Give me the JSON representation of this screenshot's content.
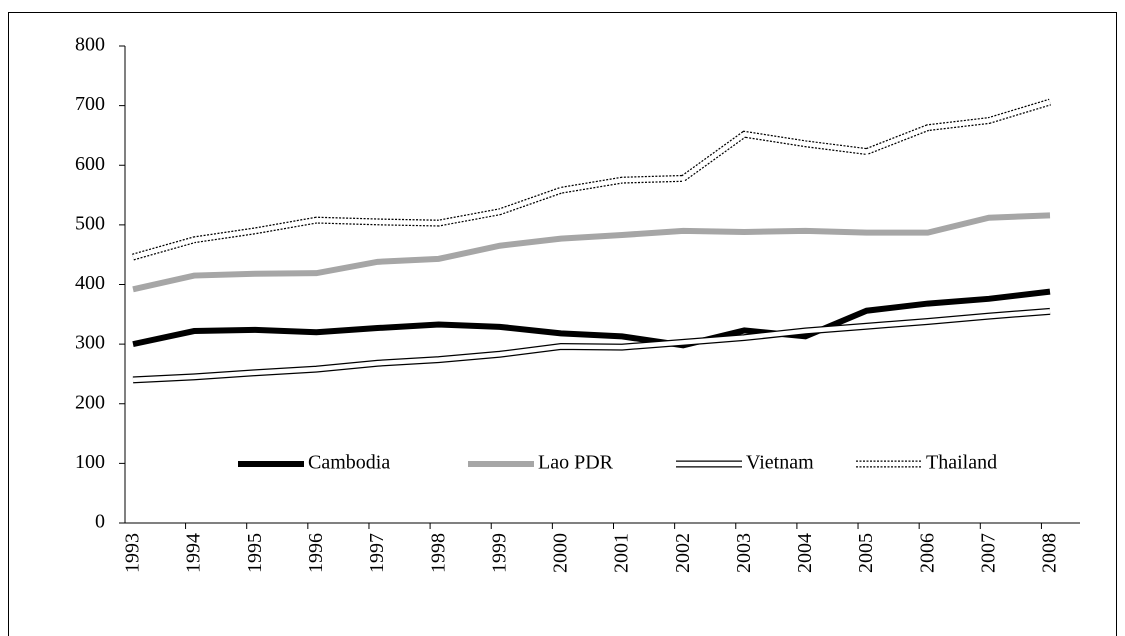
{
  "chart_data": {
    "type": "line",
    "categories": [
      "1993",
      "1994",
      "1995",
      "1996",
      "1997",
      "1998",
      "1999",
      "2000",
      "2001",
      "2002",
      "2003",
      "2004",
      "2005",
      "2006",
      "2007",
      "2008"
    ],
    "series": [
      {
        "name": "Cambodia",
        "color": "#000000",
        "values": [
          300,
          322,
          324,
          320,
          327,
          333,
          329,
          318,
          313,
          298,
          323,
          313,
          356,
          368,
          376,
          388
        ]
      },
      {
        "name": "Lao PDR",
        "color": "#a6a6a6",
        "values": [
          392,
          415,
          418,
          419,
          438,
          443,
          465,
          477,
          483,
          490,
          488,
          490,
          487,
          487,
          512,
          516
        ]
      },
      {
        "name": "Vietnam",
        "color": "#ffffff",
        "values": [
          240,
          245,
          252,
          258,
          268,
          274,
          283,
          296,
          295,
          303,
          311,
          322,
          330,
          338,
          347,
          355
        ]
      },
      {
        "name": "Thailand",
        "color": "#ffffff",
        "values": [
          446,
          475,
          490,
          508,
          505,
          503,
          522,
          558,
          575,
          578,
          652,
          636,
          623,
          663,
          675,
          706
        ]
      }
    ],
    "ylim": [
      0,
      800
    ],
    "yticks": [
      0,
      100,
      200,
      300,
      400,
      500,
      600,
      700,
      800
    ],
    "grid": false
  }
}
